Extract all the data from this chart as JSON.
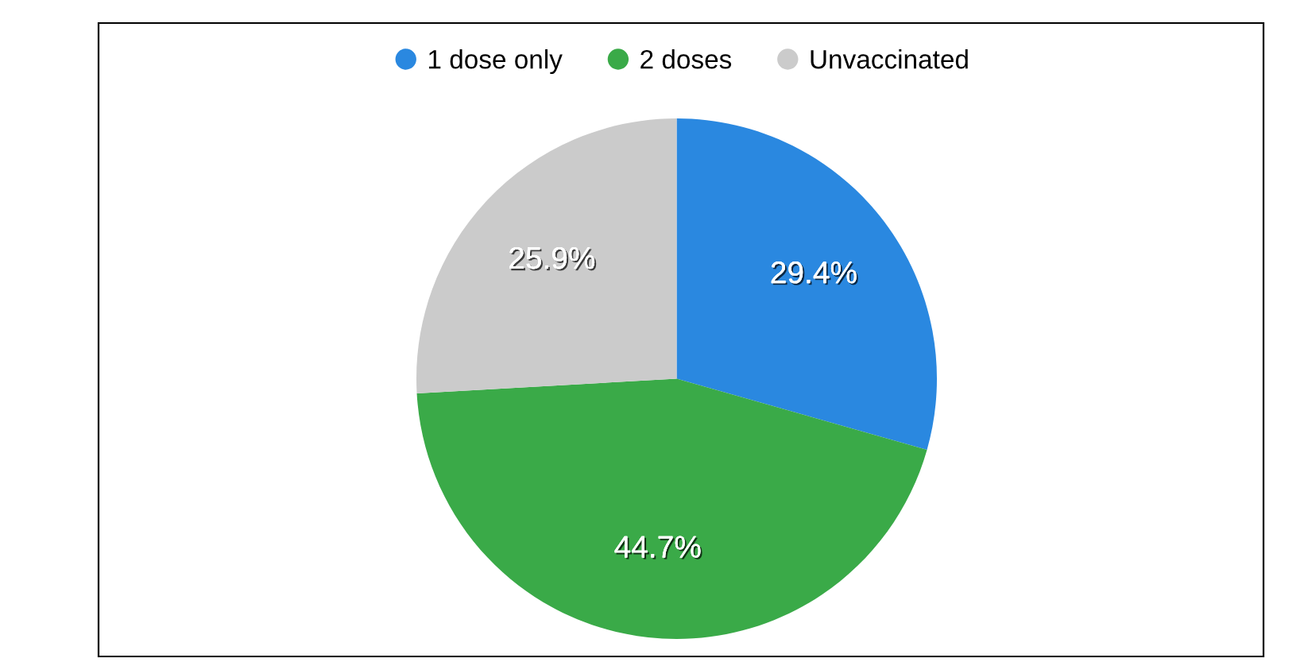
{
  "chart_data": {
    "type": "pie",
    "categories": [
      "1 dose only",
      "2 doses",
      "Unvaccinated"
    ],
    "values": [
      29.4,
      44.7,
      25.9
    ],
    "colors": [
      "#2a88e0",
      "#3aaa48",
      "#cbcbcb"
    ],
    "value_labels": [
      "29.4%",
      "44.7%",
      "25.9%"
    ],
    "legend": "top"
  }
}
